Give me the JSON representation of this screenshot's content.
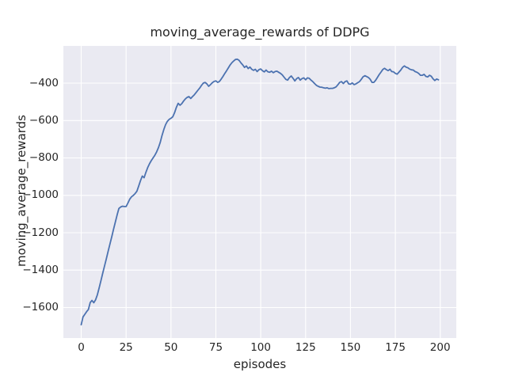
{
  "figure": {
    "title": "moving_average_rewards of DDPG",
    "xlabel": "episodes",
    "ylabel": "moving_average_rewards"
  },
  "axes": {
    "x_ticks": [
      {
        "value": 0,
        "label": "0"
      },
      {
        "value": 25,
        "label": "25"
      },
      {
        "value": 50,
        "label": "50"
      },
      {
        "value": 75,
        "label": "75"
      },
      {
        "value": 100,
        "label": "100"
      },
      {
        "value": 125,
        "label": "125"
      },
      {
        "value": 150,
        "label": "150"
      },
      {
        "value": 175,
        "label": "175"
      },
      {
        "value": 200,
        "label": "200"
      }
    ],
    "y_ticks": [
      {
        "value": -400,
        "label": "−400"
      },
      {
        "value": -600,
        "label": "−600"
      },
      {
        "value": -800,
        "label": "−800"
      },
      {
        "value": -1000,
        "label": "−1000"
      },
      {
        "value": -1200,
        "label": "−1200"
      },
      {
        "value": -1400,
        "label": "−1400"
      },
      {
        "value": -1600,
        "label": "−1600"
      }
    ]
  },
  "chart_data": {
    "type": "line",
    "title": "moving_average_rewards of DDPG",
    "xlabel": "episodes",
    "ylabel": "moving_average_rewards",
    "grid": true,
    "legend": null,
    "style": "seaborn-darkgrid",
    "xlim": [
      -9.95,
      208.95
    ],
    "ylim": [
      -1763,
      -201
    ],
    "colors": {
      "line": "#4C72B0",
      "plot_background": "#EAEAF2",
      "gridline": "#FFFFFF",
      "figure_background": "#FFFFFF",
      "text": "#262626"
    },
    "series": [
      {
        "name": "moving_average_rewards",
        "x_start": 0,
        "x_step": 1,
        "y": [
          -1692,
          -1650,
          -1636,
          -1622,
          -1610,
          -1573,
          -1562,
          -1574,
          -1558,
          -1532,
          -1494,
          -1455,
          -1416,
          -1377,
          -1338,
          -1299,
          -1260,
          -1221,
          -1182,
          -1143,
          -1104,
          -1070,
          -1062,
          -1058,
          -1060,
          -1060,
          -1041,
          -1021,
          -1008,
          -1000,
          -991,
          -978,
          -950,
          -922,
          -897,
          -906,
          -878,
          -852,
          -832,
          -815,
          -800,
          -786,
          -768,
          -745,
          -718,
          -680,
          -648,
          -622,
          -604,
          -594,
          -588,
          -580,
          -558,
          -530,
          -508,
          -518,
          -510,
          -496,
          -484,
          -476,
          -472,
          -482,
          -472,
          -462,
          -450,
          -438,
          -426,
          -412,
          -400,
          -396,
          -404,
          -417,
          -408,
          -398,
          -391,
          -388,
          -396,
          -391,
          -378,
          -364,
          -348,
          -333,
          -318,
          -302,
          -290,
          -281,
          -273,
          -272,
          -279,
          -292,
          -303,
          -316,
          -308,
          -322,
          -314,
          -326,
          -332,
          -326,
          -338,
          -328,
          -324,
          -334,
          -340,
          -330,
          -340,
          -342,
          -336,
          -344,
          -338,
          -336,
          -342,
          -348,
          -356,
          -368,
          -380,
          -384,
          -370,
          -362,
          -374,
          -388,
          -376,
          -370,
          -384,
          -376,
          -372,
          -382,
          -372,
          -374,
          -384,
          -392,
          -402,
          -412,
          -417,
          -421,
          -422,
          -425,
          -427,
          -425,
          -429,
          -428,
          -428,
          -425,
          -420,
          -408,
          -396,
          -392,
          -402,
          -392,
          -388,
          -404,
          -406,
          -399,
          -408,
          -404,
          -398,
          -392,
          -380,
          -366,
          -360,
          -365,
          -370,
          -380,
          -396,
          -396,
          -385,
          -370,
          -354,
          -341,
          -327,
          -321,
          -328,
          -333,
          -326,
          -338,
          -340,
          -348,
          -352,
          -341,
          -330,
          -316,
          -308,
          -315,
          -318,
          -325,
          -329,
          -330,
          -338,
          -342,
          -348,
          -358,
          -358,
          -353,
          -364,
          -367,
          -358,
          -363,
          -377,
          -386,
          -378,
          -382
        ]
      }
    ]
  }
}
